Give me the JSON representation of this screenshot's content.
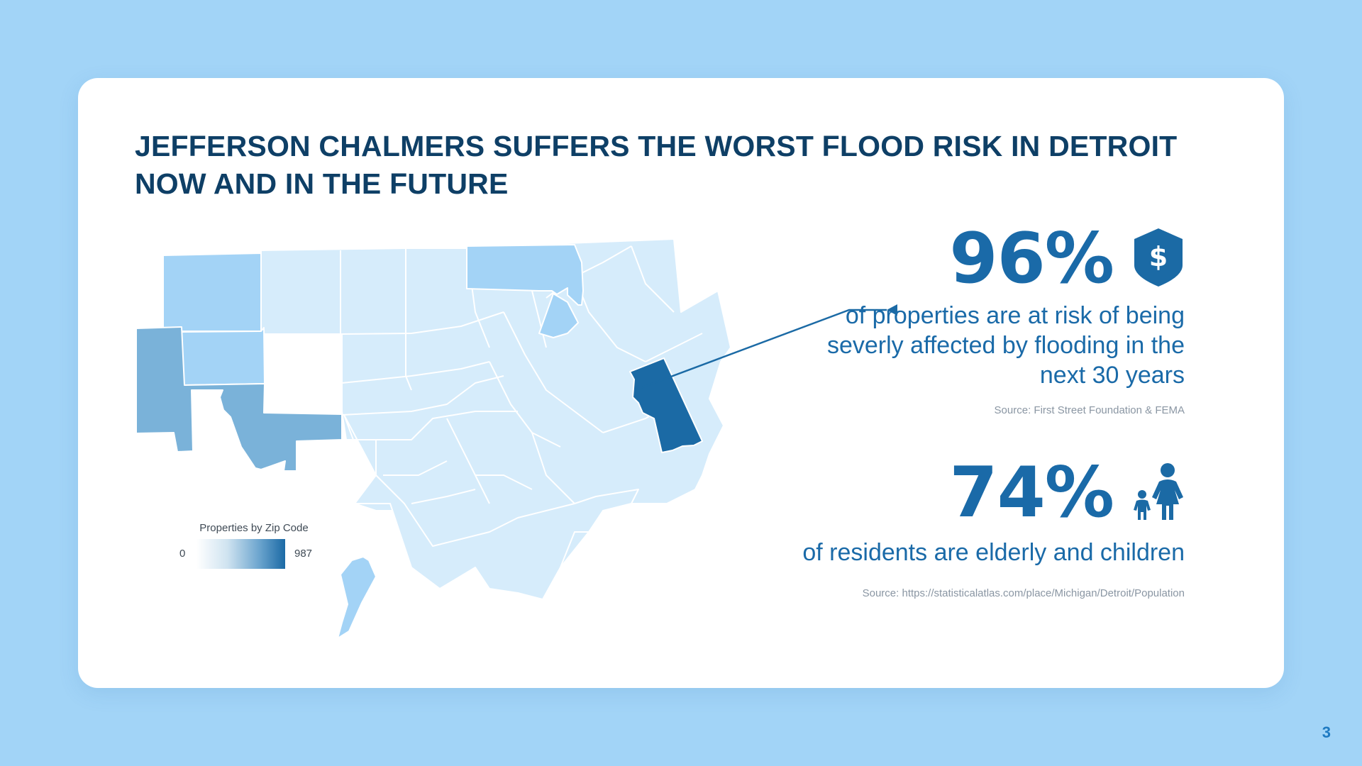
{
  "slide": {
    "title": "JEFFERSON CHALMERS SUFFERS THE WORST FLOOD RISK IN DETROIT NOW AND IN THE FUTURE",
    "page_number": "3",
    "background_color": "#a2d4f7"
  },
  "map": {
    "legend": {
      "title": "Properties by Zip Code",
      "min_label": "0",
      "max_label": "987"
    },
    "colors": {
      "lightest": "#d6ecfb",
      "light": "#a3d3f6",
      "medium": "#7ab2d9",
      "highlight": "#1b6aa5"
    }
  },
  "stats": [
    {
      "value": "96%",
      "icon": "shield-dollar-icon",
      "description": "of properties are at risk of being severly affected by flooding in the next 30 years",
      "source": "Source: First Street Foundation & FEMA"
    },
    {
      "value": "74%",
      "icon": "parent-child-icon",
      "description": "of residents are elderly and children",
      "source": "Source: https://statisticalatlas.com/place/Michigan/Detroit/Population"
    }
  ]
}
